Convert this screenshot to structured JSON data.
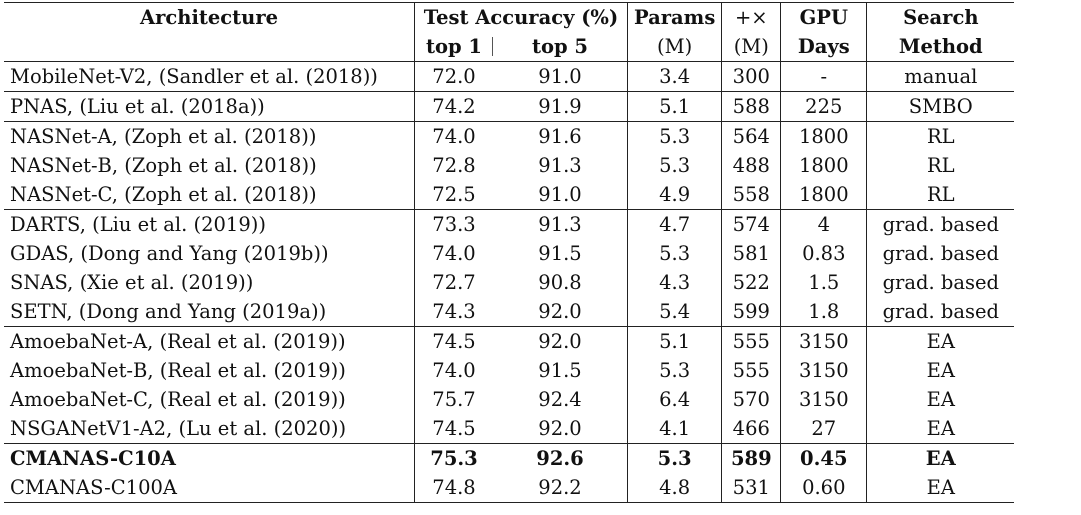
{
  "header": {
    "architecture": "Architecture",
    "test_accuracy": "Test Accuracy (%)",
    "top1": "top 1",
    "top5": "top 5",
    "params": "Params",
    "params_unit": "(M)",
    "ops": "+×",
    "ops_unit": "(M)",
    "gpu": "GPU",
    "gpu2": "Days",
    "search": "Search",
    "search2": "Method"
  },
  "rows": [
    {
      "arch": "MobileNet-V2, (Sandler et al. (2018))",
      "top1": "72.0",
      "top5": "91.0",
      "params": "3.4",
      "ops": "300",
      "gpu": "-",
      "method": "manual"
    },
    {
      "arch": "PNAS, (Liu et al. (2018a))",
      "top1": "74.2",
      "top5": "91.9",
      "params": "5.1",
      "ops": "588",
      "gpu": "225",
      "method": "SMBO"
    },
    {
      "arch": "NASNet-A, (Zoph et al. (2018))",
      "top1": "74.0",
      "top5": "91.6",
      "params": "5.3",
      "ops": "564",
      "gpu": "1800",
      "method": "RL"
    },
    {
      "arch": "NASNet-B, (Zoph et al. (2018))",
      "top1": "72.8",
      "top5": "91.3",
      "params": "5.3",
      "ops": "488",
      "gpu": "1800",
      "method": "RL"
    },
    {
      "arch": "NASNet-C, (Zoph et al. (2018))",
      "top1": "72.5",
      "top5": "91.0",
      "params": "4.9",
      "ops": "558",
      "gpu": "1800",
      "method": "RL"
    },
    {
      "arch": "DARTS, (Liu et al. (2019))",
      "top1": "73.3",
      "top5": "91.3",
      "params": "4.7",
      "ops": "574",
      "gpu": "4",
      "method": "grad. based"
    },
    {
      "arch": "GDAS, (Dong and Yang (2019b))",
      "top1": "74.0",
      "top5": "91.5",
      "params": "5.3",
      "ops": "581",
      "gpu": "0.83",
      "method": "grad. based"
    },
    {
      "arch": "SNAS, (Xie et al. (2019))",
      "top1": "72.7",
      "top5": "90.8",
      "params": "4.3",
      "ops": "522",
      "gpu": "1.5",
      "method": "grad. based"
    },
    {
      "arch": "SETN, (Dong and Yang (2019a))",
      "top1": "74.3",
      "top5": "92.0",
      "params": "5.4",
      "ops": "599",
      "gpu": "1.8",
      "method": "grad. based"
    },
    {
      "arch": "AmoebaNet-A, (Real et al. (2019))",
      "top1": "74.5",
      "top5": "92.0",
      "params": "5.1",
      "ops": "555",
      "gpu": "3150",
      "method": "EA"
    },
    {
      "arch": "AmoebaNet-B, (Real et al. (2019))",
      "top1": "74.0",
      "top5": "91.5",
      "params": "5.3",
      "ops": "555",
      "gpu": "3150",
      "method": "EA"
    },
    {
      "arch": "AmoebaNet-C, (Real et al. (2019))",
      "top1": "75.7",
      "top5": "92.4",
      "params": "6.4",
      "ops": "570",
      "gpu": "3150",
      "method": "EA"
    },
    {
      "arch": "NSGANetV1-A2, (Lu et al. (2020))",
      "top1": "74.5",
      "top5": "92.0",
      "params": "4.1",
      "ops": "466",
      "gpu": "27",
      "method": "EA"
    },
    {
      "arch": "CMANAS-C10A",
      "top1": "75.3",
      "top5": "92.6",
      "params": "5.3",
      "ops": "589",
      "gpu": "0.45",
      "method": "EA"
    },
    {
      "arch": "CMANAS-C100A",
      "top1": "74.8",
      "top5": "92.2",
      "params": "4.8",
      "ops": "531",
      "gpu": "0.60",
      "method": "EA"
    }
  ]
}
